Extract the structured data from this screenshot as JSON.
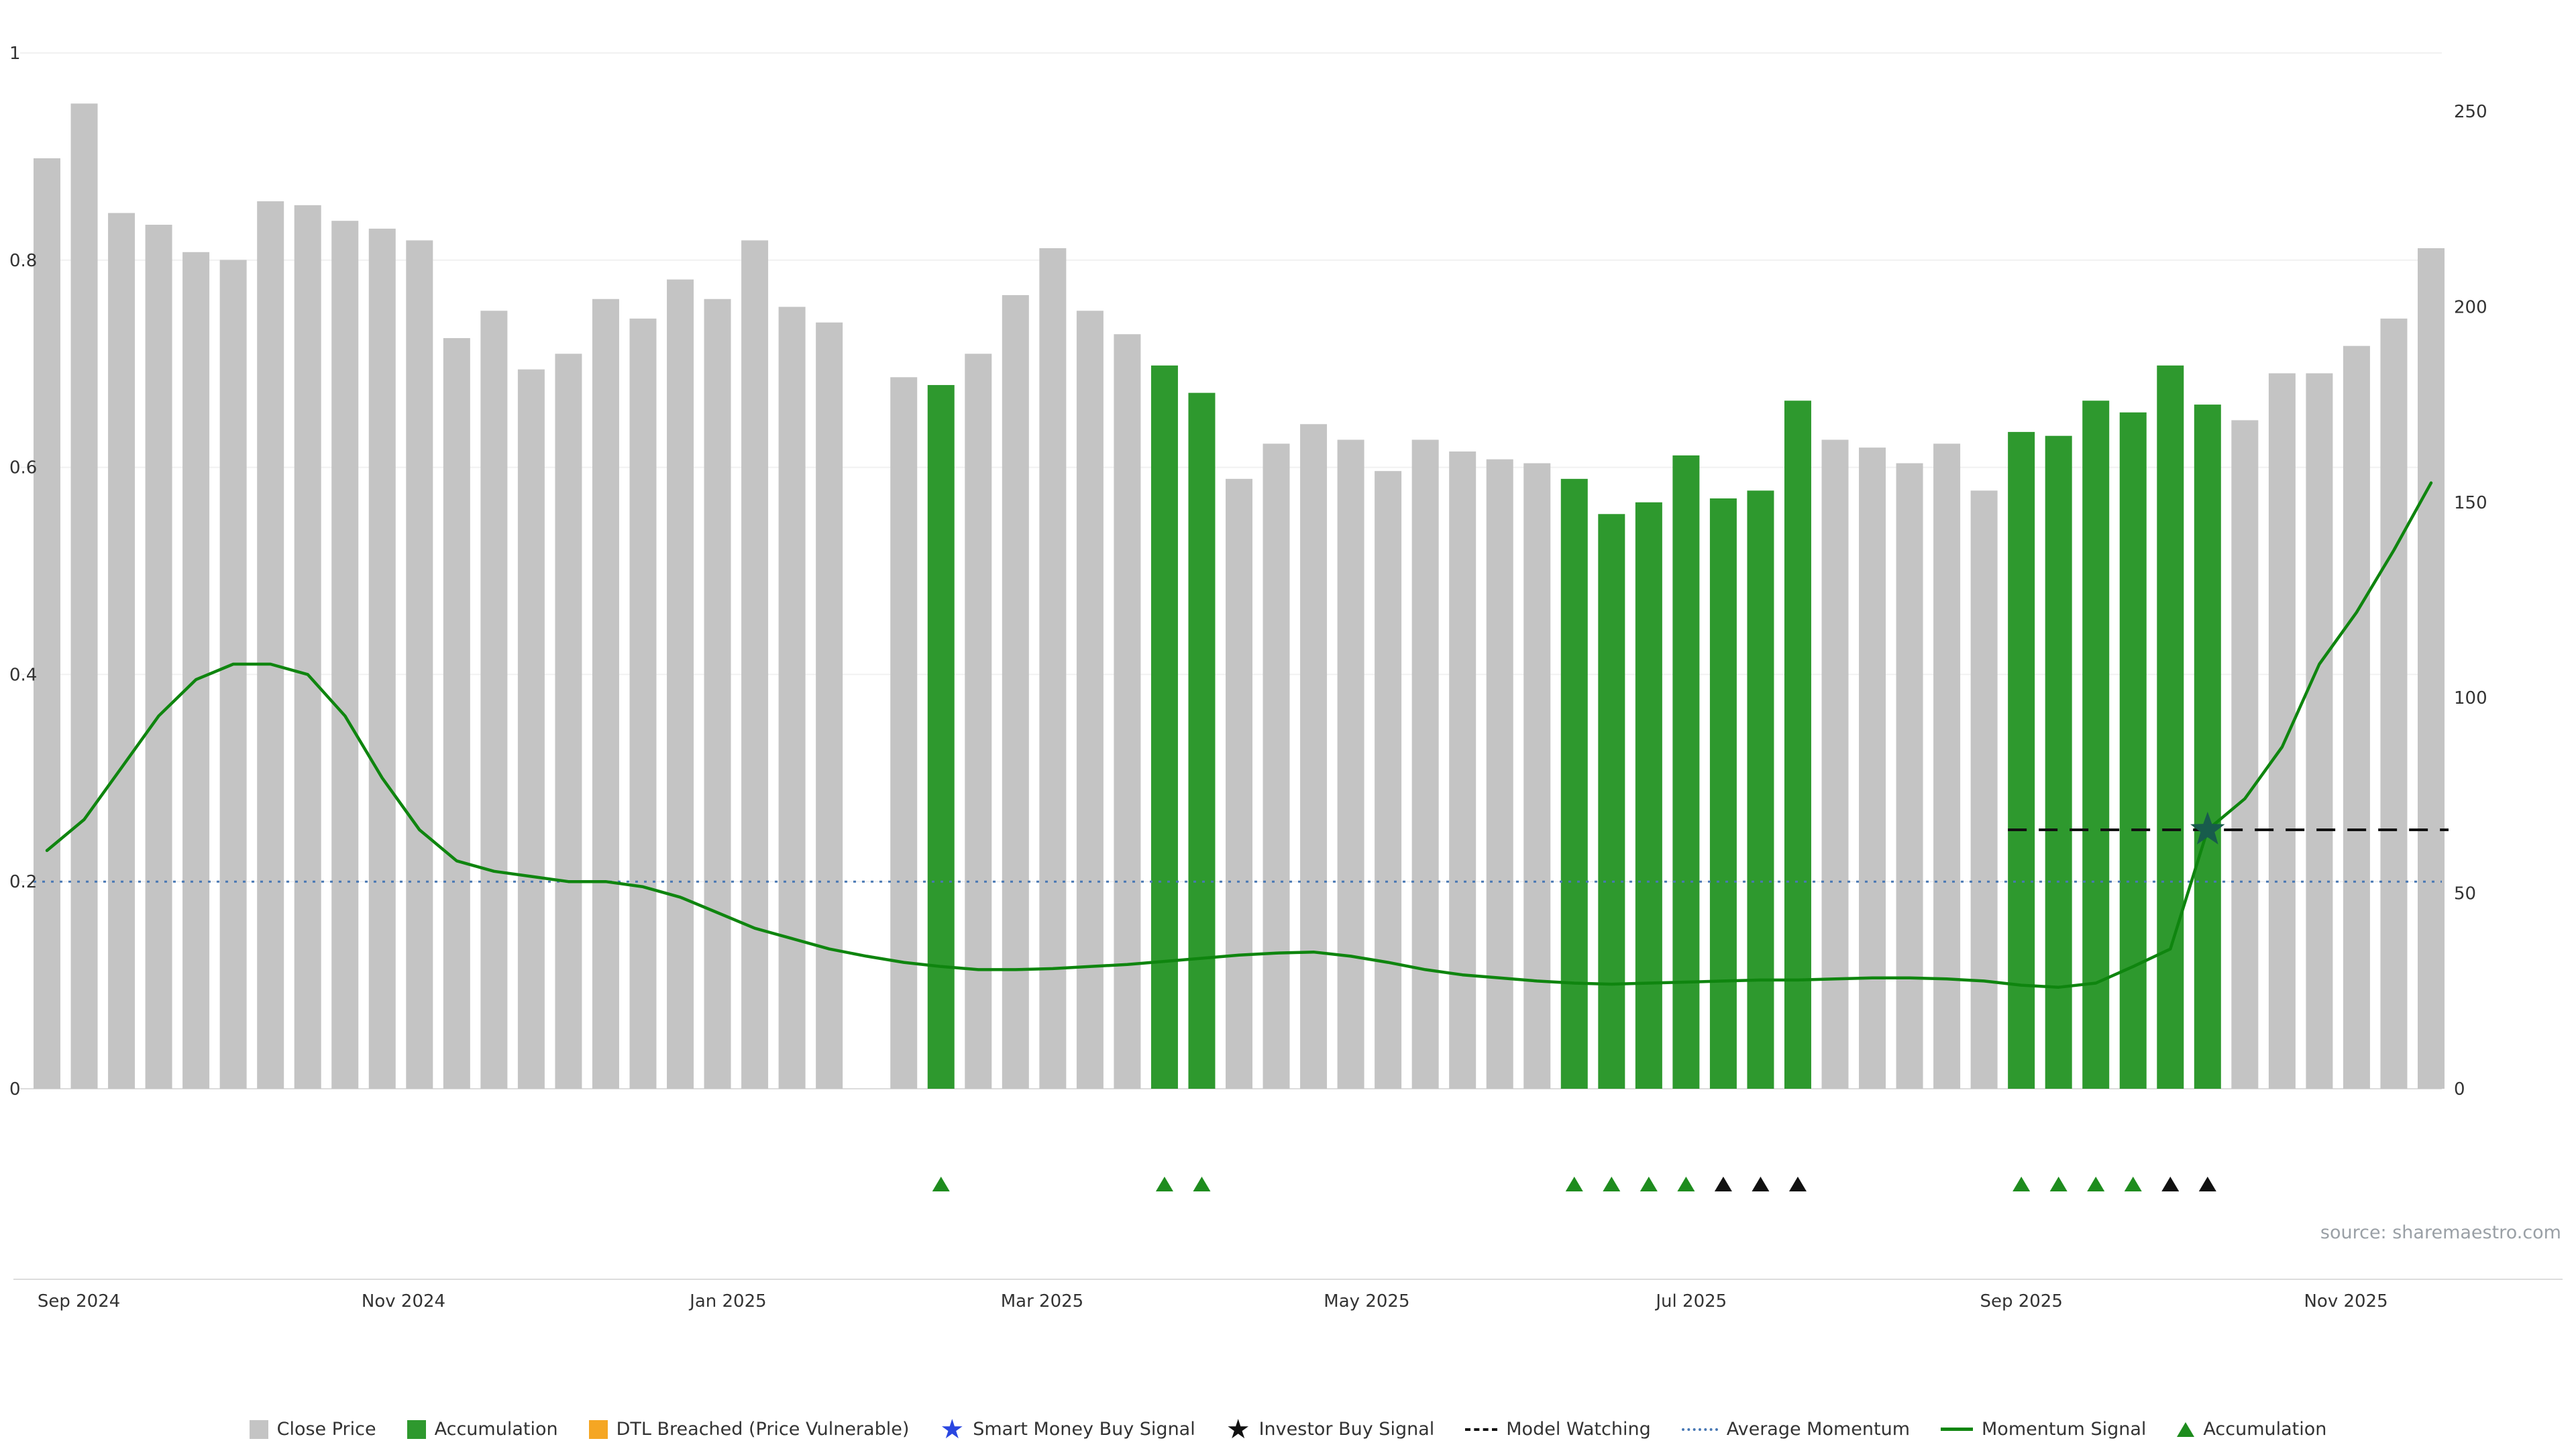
{
  "meta": {
    "source": "source: sharemaestro.com"
  },
  "chart_data": {
    "type": "bar+line",
    "title": "",
    "xlabel": "",
    "ylabel": "",
    "left_axis": {
      "range": [
        0,
        1
      ],
      "ticks": [
        0,
        0.2,
        0.4,
        0.6,
        0.8,
        1
      ],
      "labels": [
        "0",
        "0.2",
        "0.4",
        "0.6",
        "0.8",
        "1"
      ]
    },
    "right_axis": {
      "range": [
        0,
        250
      ],
      "ticks": [
        0,
        50,
        100,
        150,
        200,
        250
      ],
      "labels": [
        "0",
        "50",
        "100",
        "150",
        "200",
        "250"
      ]
    },
    "grid": "faint-horizontal",
    "x_ticks": [
      {
        "date": "2024-09-01",
        "label": "Sep 2024"
      },
      {
        "date": "2024-11-01",
        "label": "Nov 2024"
      },
      {
        "date": "2025-01-01",
        "label": "Jan 2025"
      },
      {
        "date": "2025-03-01",
        "label": "Mar 2025"
      },
      {
        "date": "2025-05-01",
        "label": "May 2025"
      },
      {
        "date": "2025-07-01",
        "label": "Jul 2025"
      },
      {
        "date": "2025-09-01",
        "label": "Sep 2025"
      },
      {
        "date": "2025-11-01",
        "label": "Nov 2025"
      }
    ],
    "date_range": [
      "2024-08-26",
      "2025-11-17"
    ],
    "bars": {
      "series_name": "Close Price",
      "axis": "right",
      "dates": [
        "2024-08-26",
        "2024-09-02",
        "2024-09-09",
        "2024-09-16",
        "2024-09-23",
        "2024-09-30",
        "2024-10-07",
        "2024-10-14",
        "2024-10-21",
        "2024-10-28",
        "2024-11-04",
        "2024-11-11",
        "2024-11-18",
        "2024-11-25",
        "2024-12-02",
        "2024-12-09",
        "2024-12-16",
        "2024-12-23",
        "2024-12-30",
        "2025-01-06",
        "2025-01-13",
        "2025-01-20",
        "2025-02-03",
        "2025-02-10",
        "2025-02-17",
        "2025-02-24",
        "2025-03-03",
        "2025-03-10",
        "2025-03-17",
        "2025-03-24",
        "2025-03-31",
        "2025-04-07",
        "2025-04-14",
        "2025-04-21",
        "2025-04-28",
        "2025-05-05",
        "2025-05-12",
        "2025-05-19",
        "2025-05-26",
        "2025-06-02",
        "2025-06-09",
        "2025-06-16",
        "2025-06-23",
        "2025-06-30",
        "2025-07-07",
        "2025-07-14",
        "2025-07-21",
        "2025-07-28",
        "2025-08-04",
        "2025-08-11",
        "2025-08-18",
        "2025-08-25",
        "2025-09-01",
        "2025-09-08",
        "2025-09-15",
        "2025-09-22",
        "2025-09-29",
        "2025-10-06",
        "2025-10-13",
        "2025-10-20",
        "2025-10-27",
        "2025-11-03",
        "2025-11-10",
        "2025-11-17"
      ],
      "close": [
        238,
        252,
        224,
        221,
        214,
        212,
        227,
        226,
        222,
        220,
        217,
        192,
        199,
        184,
        188,
        202,
        197,
        207,
        202,
        217,
        200,
        196,
        182,
        180,
        188,
        203,
        215,
        199,
        193,
        185,
        178,
        156,
        165,
        170,
        166,
        158,
        166,
        163,
        161,
        160,
        156,
        147,
        150,
        162,
        151,
        153,
        176,
        166,
        164,
        160,
        165,
        153,
        168,
        167,
        176,
        173,
        185,
        175,
        171,
        183,
        183,
        190,
        197,
        215
      ],
      "state": [
        "n",
        "n",
        "n",
        "n",
        "n",
        "n",
        "n",
        "n",
        "n",
        "n",
        "n",
        "n",
        "n",
        "n",
        "n",
        "n",
        "n",
        "n",
        "n",
        "n",
        "n",
        "n",
        "n",
        "a",
        "n",
        "n",
        "n",
        "n",
        "n",
        "a",
        "a",
        "n",
        "n",
        "n",
        "n",
        "n",
        "n",
        "n",
        "n",
        "n",
        "a",
        "a",
        "a",
        "a",
        "a",
        "a",
        "a",
        "n",
        "n",
        "n",
        "n",
        "n",
        "a",
        "a",
        "a",
        "a",
        "a",
        "a",
        "n",
        "n",
        "n",
        "n",
        "n",
        "n"
      ]
    },
    "momentum_signal": {
      "series_name": "Momentum Signal",
      "axis": "left",
      "dates": [
        "2024-08-26",
        "2024-09-02",
        "2024-09-09",
        "2024-09-16",
        "2024-09-23",
        "2024-09-30",
        "2024-10-07",
        "2024-10-14",
        "2024-10-21",
        "2024-10-28",
        "2024-11-04",
        "2024-11-11",
        "2024-11-18",
        "2024-11-25",
        "2024-12-02",
        "2024-12-09",
        "2024-12-16",
        "2024-12-23",
        "2024-12-30",
        "2025-01-06",
        "2025-01-13",
        "2025-01-20",
        "2025-01-27",
        "2025-02-03",
        "2025-02-10",
        "2025-02-17",
        "2025-02-24",
        "2025-03-03",
        "2025-03-10",
        "2025-03-17",
        "2025-03-24",
        "2025-03-31",
        "2025-04-07",
        "2025-04-14",
        "2025-04-21",
        "2025-04-28",
        "2025-05-05",
        "2025-05-12",
        "2025-05-19",
        "2025-05-26",
        "2025-06-02",
        "2025-06-09",
        "2025-06-16",
        "2025-06-23",
        "2025-06-30",
        "2025-07-07",
        "2025-07-14",
        "2025-07-21",
        "2025-07-28",
        "2025-08-04",
        "2025-08-11",
        "2025-08-18",
        "2025-08-25",
        "2025-09-01",
        "2025-09-08",
        "2025-09-15",
        "2025-09-22",
        "2025-09-29",
        "2025-10-06",
        "2025-10-13",
        "2025-10-20",
        "2025-10-27",
        "2025-11-03",
        "2025-11-10",
        "2025-11-17"
      ],
      "values": [
        0.23,
        0.26,
        0.31,
        0.36,
        0.395,
        0.41,
        0.41,
        0.4,
        0.36,
        0.3,
        0.25,
        0.22,
        0.21,
        0.205,
        0.2,
        0.2,
        0.195,
        0.185,
        0.17,
        0.155,
        0.145,
        0.135,
        0.128,
        0.122,
        0.118,
        0.115,
        0.115,
        0.116,
        0.118,
        0.12,
        0.123,
        0.126,
        0.129,
        0.131,
        0.132,
        0.128,
        0.122,
        0.115,
        0.11,
        0.107,
        0.104,
        0.102,
        0.101,
        0.102,
        0.103,
        0.104,
        0.105,
        0.105,
        0.106,
        0.107,
        0.107,
        0.106,
        0.104,
        0.1,
        0.098,
        0.102,
        0.118,
        0.135,
        0.25,
        0.28,
        0.33,
        0.41,
        0.46,
        0.52,
        0.585
      ]
    },
    "average_momentum": {
      "axis": "left",
      "value": 0.2
    },
    "model_watching": {
      "axis": "left",
      "value": 0.25,
      "from": "2025-09-01",
      "to": "2025-11-17"
    },
    "buy_signal_star": {
      "date": "2025-10-06",
      "value": 0.25
    },
    "markers": [
      {
        "date": "2025-02-10",
        "kind": "accumulation"
      },
      {
        "date": "2025-03-24",
        "kind": "accumulation"
      },
      {
        "date": "2025-03-31",
        "kind": "accumulation"
      },
      {
        "date": "2025-06-09",
        "kind": "accumulation"
      },
      {
        "date": "2025-06-16",
        "kind": "accumulation"
      },
      {
        "date": "2025-06-23",
        "kind": "accumulation"
      },
      {
        "date": "2025-06-30",
        "kind": "accumulation"
      },
      {
        "date": "2025-07-07",
        "kind": "investor"
      },
      {
        "date": "2025-07-14",
        "kind": "investor"
      },
      {
        "date": "2025-07-21",
        "kind": "investor"
      },
      {
        "date": "2025-09-01",
        "kind": "accumulation"
      },
      {
        "date": "2025-09-08",
        "kind": "accumulation"
      },
      {
        "date": "2025-09-15",
        "kind": "accumulation"
      },
      {
        "date": "2025-09-22",
        "kind": "accumulation"
      },
      {
        "date": "2025-09-29",
        "kind": "investor"
      },
      {
        "date": "2025-10-06",
        "kind": "investor"
      }
    ],
    "colors": {
      "bar": "#c4c4c4",
      "bar_accumulation": "#2e992e",
      "momentum": "#0f850f",
      "average_momentum": "#4878b4",
      "model_watching": "#111111",
      "star": "#185c4c",
      "triangle_accumulation": "#1e8c1e",
      "triangle_investor": "#111111",
      "axis_text": "#333333",
      "grid": "#f1f1f1",
      "baseline": "#dddddd"
    }
  },
  "legend": [
    {
      "label": "Close Price",
      "swatch": "square",
      "color": "#c4c4c4"
    },
    {
      "label": "Accumulation",
      "swatch": "square",
      "color": "#2e992e"
    },
    {
      "label": "DTL Breached (Price Vulnerable)",
      "swatch": "square",
      "color": "#f5a623"
    },
    {
      "label": "Smart Money Buy Signal",
      "swatch": "star",
      "color": "#2946e0",
      "glyph": "★"
    },
    {
      "label": "Investor Buy Signal",
      "swatch": "star",
      "color": "#111111",
      "glyph": "★"
    },
    {
      "label": "Model Watching",
      "swatch": "dash",
      "color": "#111111"
    },
    {
      "label": "Average Momentum",
      "swatch": "dotted",
      "color": "#4878b4"
    },
    {
      "label": "Momentum Signal",
      "swatch": "line",
      "color": "#0f850f"
    },
    {
      "label": "Accumulation",
      "swatch": "triangle",
      "color": "#1e8c1e"
    }
  ]
}
